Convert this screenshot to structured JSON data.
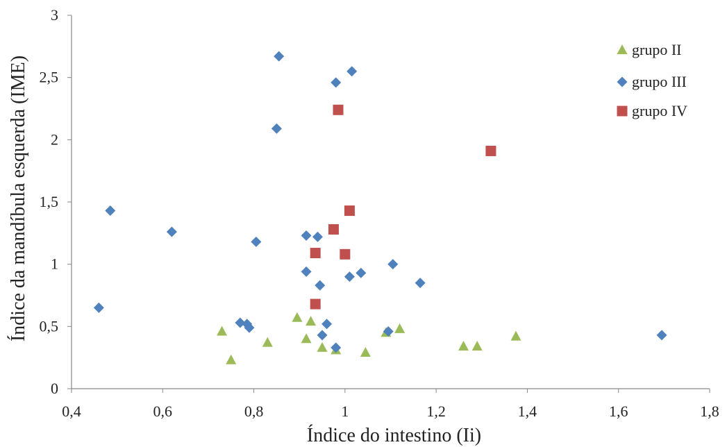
{
  "chart_data": {
    "type": "scatter",
    "xlabel": "Índice do intestino (Ii)",
    "ylabel": "Índice da mandíbula esquerda (IME)",
    "xlim": [
      0.4,
      1.8
    ],
    "ylim": [
      0,
      3
    ],
    "x_ticks": [
      "0,4",
      "0,6",
      "0,8",
      "1",
      "1,2",
      "1,4",
      "1,6",
      "1,8"
    ],
    "x_tick_values": [
      0.4,
      0.6,
      0.8,
      1.0,
      1.2,
      1.4,
      1.6,
      1.8
    ],
    "y_ticks": [
      "0",
      "0,5",
      "1",
      "1,5",
      "2",
      "2,5",
      "3"
    ],
    "y_tick_values": [
      0,
      0.5,
      1.0,
      1.5,
      2.0,
      2.5,
      3.0
    ],
    "grid": false,
    "legend_position": "top-right",
    "series": [
      {
        "name": "grupo II",
        "marker": "triangle",
        "color": "#9BBB59",
        "points": [
          [
            0.73,
            0.46
          ],
          [
            0.75,
            0.23
          ],
          [
            0.83,
            0.37
          ],
          [
            0.895,
            0.57
          ],
          [
            0.915,
            0.4
          ],
          [
            0.925,
            0.54
          ],
          [
            0.95,
            0.33
          ],
          [
            0.98,
            0.31
          ],
          [
            1.045,
            0.29
          ],
          [
            1.09,
            0.45
          ],
          [
            1.12,
            0.48
          ],
          [
            1.26,
            0.34
          ],
          [
            1.29,
            0.34
          ],
          [
            1.375,
            0.42
          ]
        ]
      },
      {
        "name": "grupo III",
        "marker": "diamond",
        "color": "#4F81BD",
        "points": [
          [
            0.46,
            0.65
          ],
          [
            0.485,
            1.43
          ],
          [
            0.62,
            1.26
          ],
          [
            0.77,
            0.53
          ],
          [
            0.785,
            0.52
          ],
          [
            0.79,
            0.49
          ],
          [
            0.805,
            1.18
          ],
          [
            0.85,
            2.09
          ],
          [
            0.855,
            2.67
          ],
          [
            0.915,
            1.23
          ],
          [
            0.915,
            0.94
          ],
          [
            0.94,
            1.22
          ],
          [
            0.945,
            0.83
          ],
          [
            0.95,
            0.43
          ],
          [
            0.96,
            0.52
          ],
          [
            0.98,
            2.46
          ],
          [
            0.98,
            0.33
          ],
          [
            1.01,
            0.9
          ],
          [
            1.015,
            2.55
          ],
          [
            1.035,
            0.93
          ],
          [
            1.095,
            0.46
          ],
          [
            1.105,
            1.0
          ],
          [
            1.165,
            0.85
          ],
          [
            1.695,
            0.43
          ]
        ]
      },
      {
        "name": "grupo IV",
        "marker": "square",
        "color": "#C0504D",
        "points": [
          [
            0.935,
            0.68
          ],
          [
            0.935,
            1.09
          ],
          [
            0.975,
            1.28
          ],
          [
            0.985,
            2.24
          ],
          [
            1.0,
            1.08
          ],
          [
            1.01,
            1.43
          ],
          [
            1.32,
            1.91
          ]
        ]
      }
    ]
  }
}
